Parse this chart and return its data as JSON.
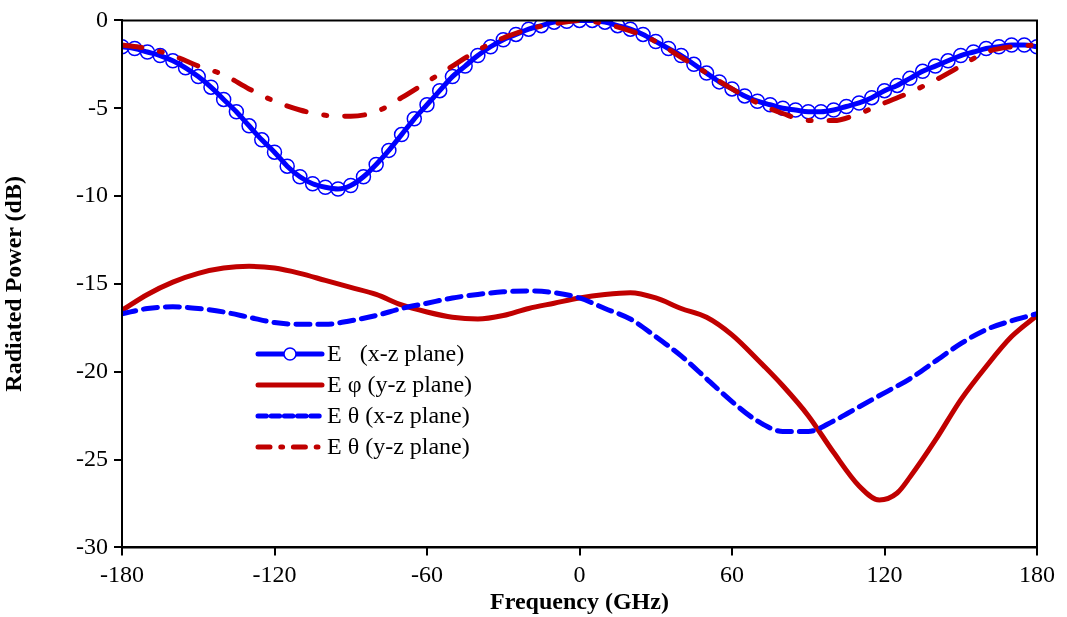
{
  "chart_data": {
    "type": "line",
    "xlabel": "Frequency (GHz)",
    "ylabel": "Radiated Power (dB)",
    "xlim": [
      -180,
      180
    ],
    "xticks": [
      -180,
      -120,
      -60,
      0,
      60,
      120,
      180
    ],
    "ylim": [
      -30,
      0
    ],
    "yticks": [
      -30,
      -25,
      -20,
      -15,
      -10,
      -5,
      0
    ],
    "grid": false,
    "legend": "bottom left",
    "series": [
      {
        "name": "E   (x-z plane)",
        "color": "#0000ff",
        "marker": "circle",
        "line_style": "solid",
        "x": [
          -180,
          -175,
          -170,
          -165,
          -160,
          -155,
          -150,
          -145,
          -140,
          -135,
          -130,
          -125,
          -120,
          -115,
          -110,
          -105,
          -100,
          -95,
          -90,
          -85,
          -80,
          -75,
          -70,
          -65,
          -60,
          -55,
          -50,
          -45,
          -40,
          -35,
          -30,
          -25,
          -20,
          -15,
          -10,
          -5,
          0,
          5,
          10,
          15,
          20,
          25,
          30,
          35,
          40,
          45,
          50,
          55,
          60,
          65,
          70,
          75,
          80,
          85,
          90,
          95,
          100,
          105,
          110,
          115,
          120,
          125,
          130,
          135,
          140,
          145,
          150,
          155,
          160,
          165,
          170,
          175,
          180
        ],
        "values": [
          -1.5,
          -1.6,
          -1.8,
          -2.0,
          -2.3,
          -2.7,
          -3.2,
          -3.8,
          -4.5,
          -5.2,
          -6.0,
          -6.8,
          -7.5,
          -8.3,
          -8.9,
          -9.3,
          -9.5,
          -9.6,
          -9.4,
          -8.9,
          -8.2,
          -7.4,
          -6.5,
          -5.6,
          -4.8,
          -4.0,
          -3.2,
          -2.6,
          -2.0,
          -1.5,
          -1.1,
          -0.8,
          -0.5,
          -0.3,
          -0.1,
          -0.05,
          0,
          0,
          -0.1,
          -0.3,
          -0.5,
          -0.8,
          -1.2,
          -1.6,
          -2.0,
          -2.5,
          -3.0,
          -3.5,
          -3.9,
          -4.3,
          -4.6,
          -4.8,
          -5.0,
          -5.1,
          -5.2,
          -5.2,
          -5.1,
          -4.9,
          -4.7,
          -4.4,
          -4.0,
          -3.7,
          -3.3,
          -2.9,
          -2.6,
          -2.3,
          -2.0,
          -1.8,
          -1.6,
          -1.5,
          -1.4,
          -1.4,
          -1.5
        ]
      },
      {
        "name": "E φ (y-z plane)",
        "color": "#c00000",
        "marker": "none",
        "line_style": "solid",
        "x": [
          -180,
          -170,
          -160,
          -150,
          -140,
          -130,
          -120,
          -110,
          -100,
          -90,
          -80,
          -70,
          -60,
          -50,
          -40,
          -30,
          -20,
          -10,
          0,
          10,
          20,
          30,
          40,
          50,
          60,
          70,
          80,
          90,
          100,
          110,
          118,
          125,
          130,
          140,
          150,
          160,
          170,
          180
        ],
        "values": [
          -16.5,
          -15.6,
          -14.9,
          -14.4,
          -14.1,
          -14.0,
          -14.1,
          -14.4,
          -14.8,
          -15.2,
          -15.6,
          -16.2,
          -16.6,
          -16.9,
          -17.0,
          -16.8,
          -16.4,
          -16.1,
          -15.8,
          -15.6,
          -15.5,
          -15.8,
          -16.4,
          -16.9,
          -17.9,
          -19.3,
          -20.8,
          -22.5,
          -24.6,
          -26.5,
          -27.3,
          -26.9,
          -26.0,
          -23.9,
          -21.6,
          -19.7,
          -18.0,
          -16.8
        ]
      },
      {
        "name": "E θ (x-z plane)",
        "color": "#0000ff",
        "marker": "none",
        "line_style": "dashed",
        "x": [
          -180,
          -170,
          -160,
          -150,
          -140,
          -130,
          -120,
          -110,
          -100,
          -90,
          -80,
          -70,
          -60,
          -50,
          -40,
          -30,
          -20,
          -10,
          0,
          10,
          20,
          30,
          40,
          50,
          60,
          70,
          80,
          90,
          100,
          110,
          120,
          130,
          140,
          150,
          160,
          170,
          180
        ],
        "values": [
          -16.7,
          -16.4,
          -16.3,
          -16.4,
          -16.6,
          -16.9,
          -17.2,
          -17.3,
          -17.3,
          -17.1,
          -16.8,
          -16.4,
          -16.1,
          -15.8,
          -15.6,
          -15.45,
          -15.4,
          -15.5,
          -15.8,
          -16.4,
          -17.0,
          -18.0,
          -19.1,
          -20.4,
          -21.7,
          -22.8,
          -23.4,
          -23.4,
          -22.8,
          -22.0,
          -21.2,
          -20.4,
          -19.4,
          -18.4,
          -17.6,
          -17.1,
          -16.7
        ]
      },
      {
        "name": "E θ (y-z plane)",
        "color": "#c00000",
        "marker": "none",
        "line_style": "dashdot",
        "x": [
          -180,
          -170,
          -160,
          -150,
          -140,
          -130,
          -120,
          -110,
          -100,
          -90,
          -80,
          -70,
          -60,
          -50,
          -40,
          -30,
          -20,
          -10,
          0,
          10,
          20,
          30,
          40,
          50,
          60,
          70,
          80,
          90,
          100,
          110,
          120,
          130,
          140,
          150,
          160,
          170,
          180
        ],
        "values": [
          -1.4,
          -1.6,
          -2.0,
          -2.6,
          -3.1,
          -3.9,
          -4.6,
          -5.1,
          -5.4,
          -5.45,
          -5.2,
          -4.4,
          -3.5,
          -2.6,
          -1.7,
          -1.0,
          -0.5,
          -0.2,
          0,
          -0.2,
          -0.6,
          -1.2,
          -2.1,
          -3.0,
          -3.9,
          -4.7,
          -5.3,
          -5.7,
          -5.7,
          -5.3,
          -4.7,
          -4.1,
          -3.4,
          -2.6,
          -1.8,
          -1.5,
          -1.4
        ]
      }
    ]
  }
}
